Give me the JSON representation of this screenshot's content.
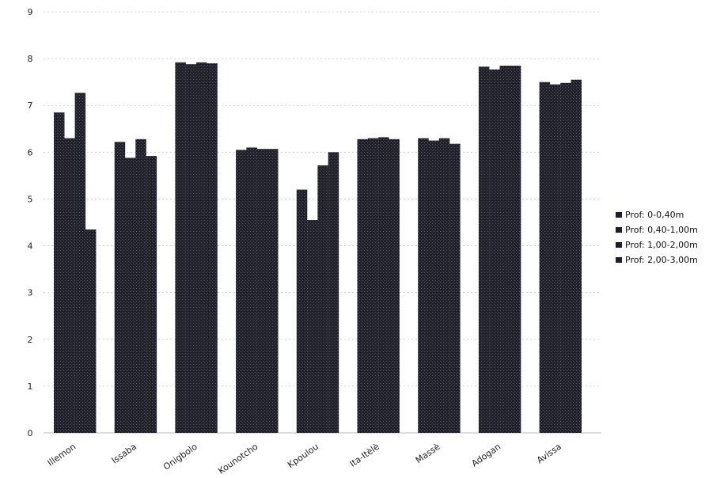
{
  "chart_data": {
    "type": "bar",
    "title": "",
    "xlabel": "",
    "ylabel": "",
    "ylim": [
      0,
      9
    ],
    "yticks": [
      0,
      1,
      2,
      3,
      4,
      5,
      6,
      7,
      8,
      9
    ],
    "grid": true,
    "legend_position": "right",
    "categories": [
      "Illemon",
      "Issaba",
      "Onigbolo",
      "Kounotcho",
      "Kpoulou",
      "Ita-Itèlè",
      "Massè",
      "Adogan",
      "Avissa"
    ],
    "series": [
      {
        "name": "Prof: 0-0,40m",
        "values": [
          6.85,
          6.22,
          7.92,
          6.05,
          5.2,
          6.28,
          6.3,
          7.83,
          7.5
        ]
      },
      {
        "name": "Prof: 0,40-1,00m",
        "values": [
          6.3,
          5.88,
          7.88,
          6.1,
          4.55,
          6.3,
          6.25,
          7.77,
          7.45
        ]
      },
      {
        "name": "Prof: 1,00-2,00m",
        "values": [
          7.27,
          6.28,
          7.92,
          6.07,
          5.72,
          6.32,
          6.3,
          7.85,
          7.48
        ]
      },
      {
        "name": "Prof: 2,00-3,00m",
        "values": [
          4.35,
          5.92,
          7.9,
          6.07,
          6.0,
          6.28,
          6.18,
          7.85,
          7.55
        ]
      }
    ],
    "bar_color": "#1e1e2a"
  }
}
